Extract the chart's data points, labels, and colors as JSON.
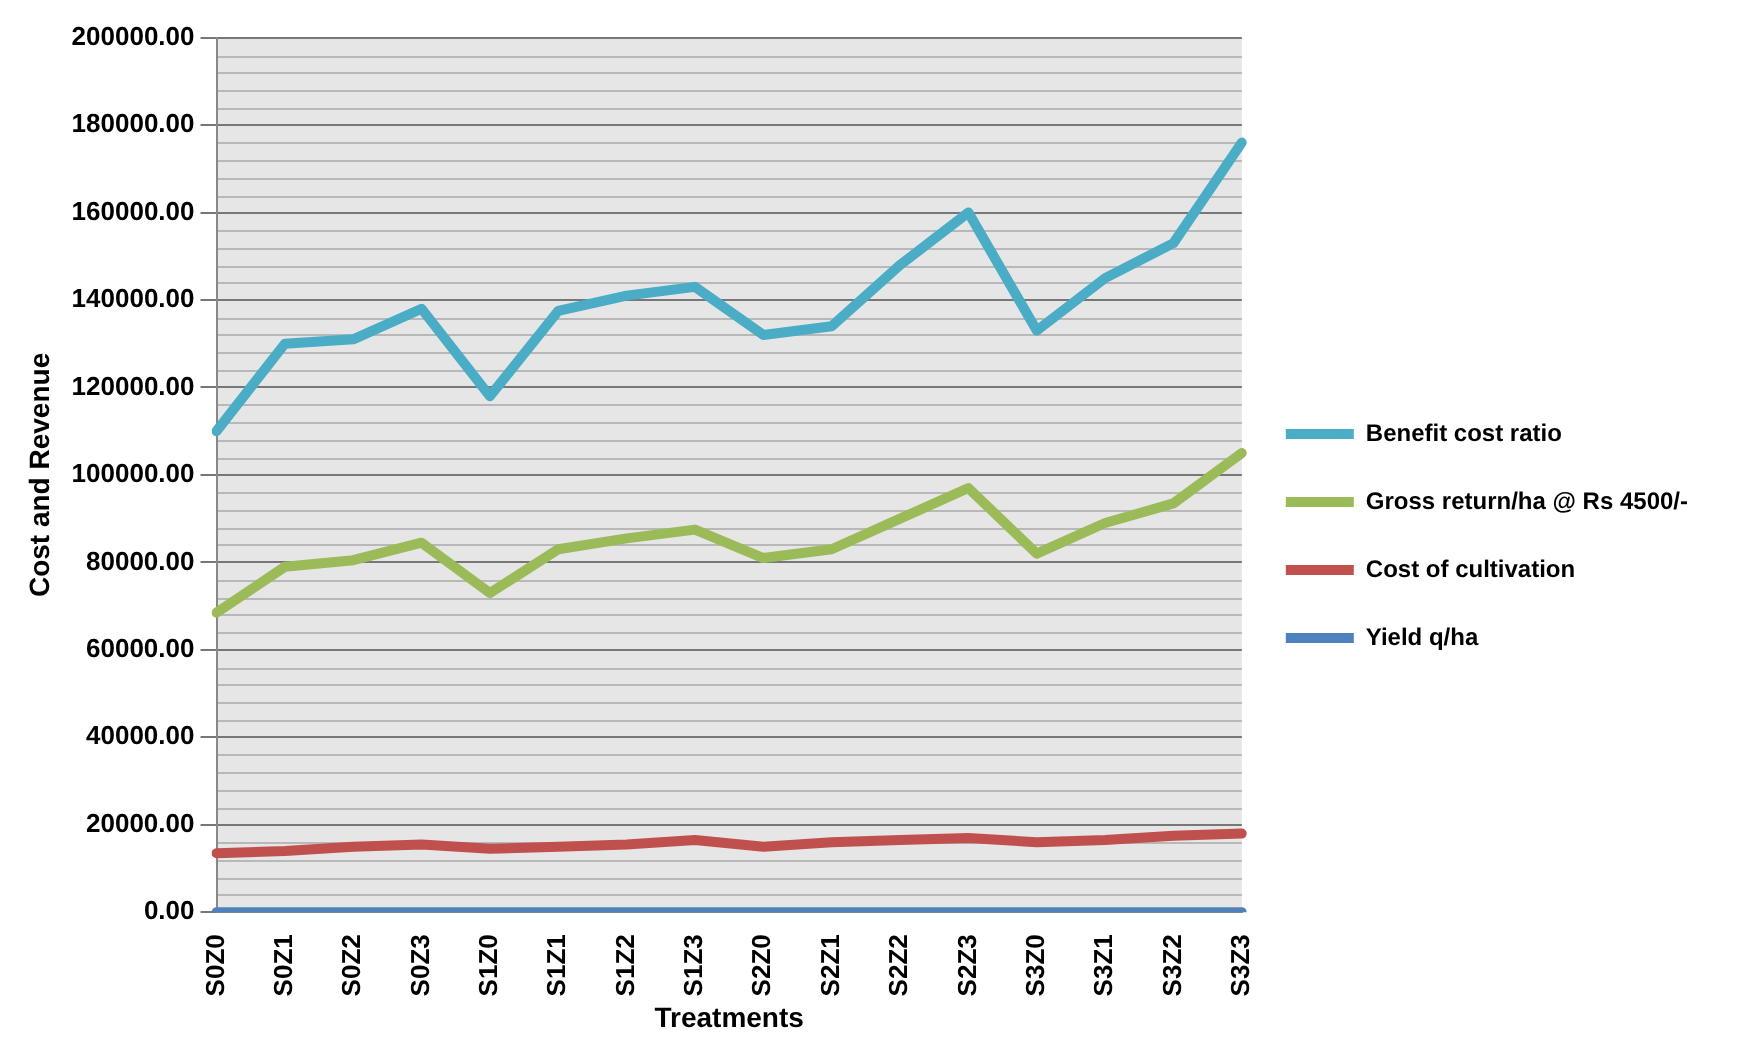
{
  "chart_data": {
    "type": "line",
    "xlabel": "Treatments",
    "ylabel": "Cost and Revenue",
    "categories": [
      "S0Z0",
      "S0Z1",
      "S0Z2",
      "S0Z3",
      "S1Z0",
      "S1Z1",
      "S1Z2",
      "S1Z3",
      "S2Z0",
      "S2Z1",
      "S2Z2",
      "S2Z3",
      "S3Z0",
      "S3Z1",
      "S3Z2",
      "S3Z3"
    ],
    "series": [
      {
        "name": "Benefit cost ratio",
        "color": "#4bacc6",
        "values": [
          110000,
          130000,
          131000,
          138000,
          118000,
          137500,
          141000,
          143000,
          132000,
          134000,
          148000,
          160000,
          133000,
          145000,
          153000,
          176000
        ]
      },
      {
        "name": "Gross return/ha @ Rs 4500/-",
        "color": "#9bbb59",
        "values": [
          68500,
          79000,
          80500,
          84500,
          73000,
          83000,
          85500,
          87500,
          81000,
          83000,
          90000,
          97000,
          82000,
          89000,
          93500,
          105000
        ]
      },
      {
        "name": "Cost of cultivation",
        "color": "#c0504d",
        "values": [
          13500,
          14000,
          15000,
          15500,
          14500,
          15000,
          15500,
          16500,
          15000,
          16000,
          16500,
          17000,
          16000,
          16500,
          17500,
          18000
        ]
      },
      {
        "name": "Yield q/ha",
        "color": "#4f81bd",
        "values": [
          0,
          0,
          0,
          0,
          0,
          0,
          0,
          0,
          0,
          0,
          0,
          0,
          0,
          0,
          0,
          0
        ]
      }
    ],
    "ylim": [
      0,
      200000
    ],
    "yticks": [
      {
        "value": 0,
        "label": "0.00"
      },
      {
        "value": 20000,
        "label": "20000.00"
      },
      {
        "value": 40000,
        "label": "40000.00"
      },
      {
        "value": 60000,
        "label": "60000.00"
      },
      {
        "value": 80000,
        "label": "80000.00"
      },
      {
        "value": 100000,
        "label": "100000.00"
      },
      {
        "value": 120000,
        "label": "120000.00"
      },
      {
        "value": 140000,
        "label": "140000.00"
      },
      {
        "value": 160000,
        "label": "160000.00"
      },
      {
        "value": 180000,
        "label": "180000.00"
      },
      {
        "value": 200000,
        "label": "200000.00"
      }
    ],
    "grid": "y",
    "legend": "right",
    "marker": "none",
    "line_style": "solid"
  }
}
